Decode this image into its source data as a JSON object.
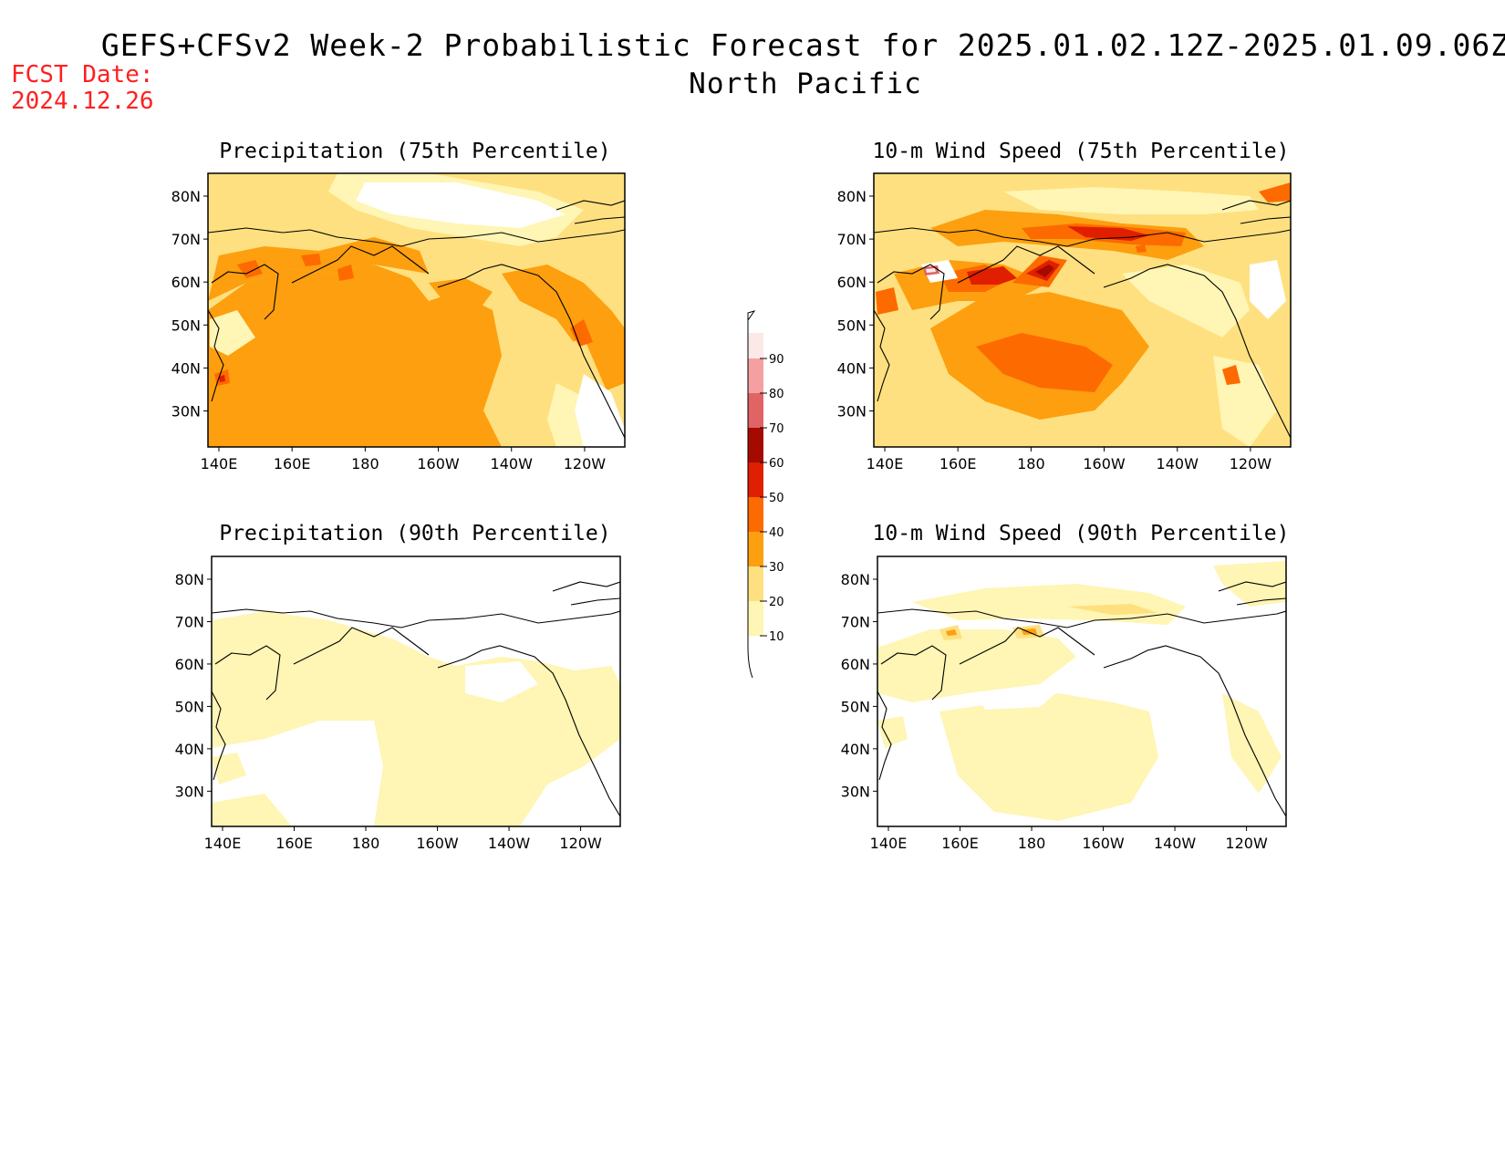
{
  "header": {
    "title": "GEFS+CFSv2 Week-2 Probabilistic Forecast for 2025.01.02.12Z-2025.01.09.06Z",
    "subtitle": "North Pacific",
    "fcst_label": "FCST Date:",
    "fcst_date": "2024.12.26"
  },
  "colors": {
    "c10": "#fff5b4",
    "c20": "#fee080",
    "c30": "#fd9f0e",
    "c40": "#fd6a00",
    "c50": "#e01e00",
    "c60": "#a50a00",
    "c70": "#e06464",
    "c80": "#f5a0a0",
    "c90": "#fde8e8"
  },
  "axes": {
    "x_ticks": [
      "140E",
      "160E",
      "180",
      "160W",
      "140W",
      "120W"
    ],
    "y_ticks": [
      "80N",
      "70N",
      "60N",
      "50N",
      "40N",
      "30N"
    ]
  },
  "panels": [
    {
      "id": "precip75",
      "title": "Precipitation (75th Percentile)"
    },
    {
      "id": "wind75",
      "title": "10-m Wind Speed (75th Percentile)"
    },
    {
      "id": "precip90",
      "title": "Precipitation (90th Percentile)"
    },
    {
      "id": "wind90",
      "title": "10-m Wind Speed (90th Percentile)"
    }
  ],
  "colorbar": {
    "levels": [
      "10",
      "20",
      "30",
      "40",
      "50",
      "60",
      "70",
      "80",
      "90"
    ]
  }
}
